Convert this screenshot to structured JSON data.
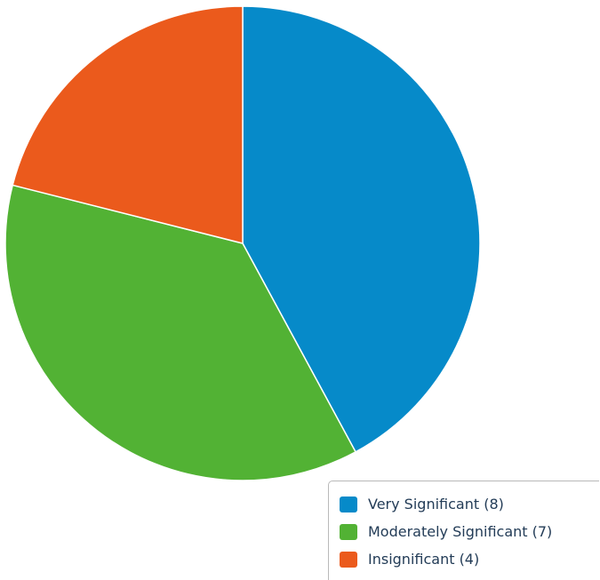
{
  "chart_data": {
    "type": "pie",
    "title": "",
    "slices": [
      {
        "label": "Very Significant",
        "value": 8,
        "color": "#068ac9"
      },
      {
        "label": "Moderately Significant",
        "value": 7,
        "color": "#52b234"
      },
      {
        "label": "Insignificant",
        "value": 4,
        "color": "#eb5a1c"
      }
    ],
    "start_angle_deg": 0,
    "direction": "clockwise",
    "legend_position": "bottom-right"
  },
  "legend": {
    "items": [
      {
        "label": "Very Significant (8)",
        "color": "#068ac9"
      },
      {
        "label": "Moderately Significant (7)",
        "color": "#52b234"
      },
      {
        "label": "Insignificant (4)",
        "color": "#eb5a1c"
      }
    ]
  }
}
